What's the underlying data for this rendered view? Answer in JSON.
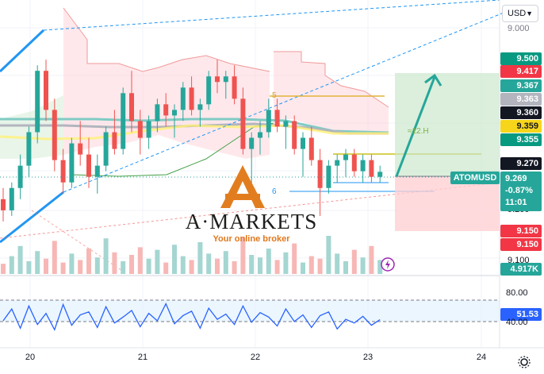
{
  "header": {
    "currency": "USD"
  },
  "price_axis": {
    "top_label": "9.000",
    "mid_label": "9.200",
    "lower_label": "9.100",
    "tags": [
      {
        "value": "9.500",
        "color": "#089981"
      },
      {
        "value": "9.417",
        "color": "#f23645"
      },
      {
        "value": "9.367",
        "color": "#26a69a"
      },
      {
        "value": "9.363",
        "color": "#b2b5be"
      },
      {
        "value": "9.360",
        "color": "#131722"
      },
      {
        "value": "9.359",
        "color": "#f7d51b"
      },
      {
        "value": "9.355",
        "color": "#089981"
      },
      {
        "value": "9.270",
        "color": "#131722"
      },
      {
        "value": "9.150",
        "color": "#f23645"
      },
      {
        "value": "9.150",
        "color": "#f23645"
      }
    ],
    "last": {
      "symbol": "ATOMUSD",
      "price": "9.269",
      "change": "-0.87%",
      "countdown": "11:01"
    },
    "volume_tag": "4.917K"
  },
  "rsi_axis": {
    "upper": "80.00",
    "value": "51.53",
    "lower": "40.00"
  },
  "time_axis": {
    "labels": [
      "20",
      "21",
      "22",
      "23",
      "24"
    ]
  },
  "annotations": {
    "fib_5": "5",
    "fib_6": "6",
    "range_label": "≈12.H"
  },
  "logo": {
    "brand": "A·MARKETS",
    "tagline": "Your online broker"
  },
  "chart_data": {
    "type": "candlestick",
    "symbol": "ATOMUSD",
    "x_labels": [
      "20",
      "21",
      "22",
      "23",
      "24"
    ],
    "ohlc": [
      [
        9.22,
        9.24,
        9.18,
        9.2
      ],
      [
        9.2,
        9.25,
        9.19,
        9.24
      ],
      [
        9.24,
        9.3,
        9.22,
        9.28
      ],
      [
        9.28,
        9.35,
        9.26,
        9.34
      ],
      [
        9.34,
        9.46,
        9.32,
        9.45
      ],
      [
        9.45,
        9.47,
        9.36,
        9.38
      ],
      [
        9.38,
        9.4,
        9.27,
        9.29
      ],
      [
        9.29,
        9.31,
        9.23,
        9.25
      ],
      [
        9.25,
        9.33,
        9.24,
        9.32
      ],
      [
        9.32,
        9.36,
        9.28,
        9.3
      ],
      [
        9.3,
        9.33,
        9.24,
        9.26
      ],
      [
        9.26,
        9.3,
        9.23,
        9.28
      ],
      [
        9.28,
        9.35,
        9.27,
        9.34
      ],
      [
        9.34,
        9.38,
        9.3,
        9.31
      ],
      [
        9.31,
        9.42,
        9.3,
        9.41
      ],
      [
        9.41,
        9.45,
        9.34,
        9.36
      ],
      [
        9.36,
        9.38,
        9.3,
        9.33
      ],
      [
        9.33,
        9.37,
        9.31,
        9.36
      ],
      [
        9.36,
        9.4,
        9.34,
        9.39
      ],
      [
        9.39,
        9.41,
        9.35,
        9.37
      ],
      [
        9.37,
        9.39,
        9.33,
        9.38
      ],
      [
        9.38,
        9.43,
        9.36,
        9.42
      ],
      [
        9.42,
        9.44,
        9.37,
        9.38
      ],
      [
        9.38,
        9.4,
        9.35,
        9.39
      ],
      [
        9.39,
        9.45,
        9.38,
        9.44
      ],
      [
        9.44,
        9.47,
        9.41,
        9.43
      ],
      [
        9.43,
        9.45,
        9.4,
        9.44
      ],
      [
        9.44,
        9.46,
        9.39,
        9.4
      ],
      [
        9.4,
        9.42,
        9.3,
        9.31
      ],
      [
        9.31,
        9.34,
        9.22,
        9.33
      ],
      [
        9.33,
        9.36,
        9.3,
        9.34
      ],
      [
        9.34,
        9.4,
        9.33,
        9.38
      ],
      [
        9.38,
        9.4,
        9.34,
        9.35
      ],
      [
        9.35,
        9.37,
        9.31,
        9.36
      ],
      [
        9.36,
        9.37,
        9.3,
        9.31
      ],
      [
        9.31,
        9.34,
        9.26,
        9.33
      ],
      [
        9.33,
        9.35,
        9.28,
        9.29
      ],
      [
        9.29,
        9.31,
        9.19,
        9.24
      ],
      [
        9.24,
        9.29,
        9.23,
        9.28
      ],
      [
        9.28,
        9.3,
        9.25,
        9.29
      ],
      [
        9.29,
        9.31,
        9.26,
        9.3
      ],
      [
        9.3,
        9.31,
        9.26,
        9.27
      ],
      [
        9.27,
        9.3,
        9.25,
        9.29
      ],
      [
        9.29,
        9.3,
        9.25,
        9.26
      ],
      [
        9.26,
        9.28,
        9.25,
        9.269
      ]
    ],
    "rsi": {
      "value": 51.53,
      "levels": [
        80,
        40
      ],
      "values": [
        50,
        66,
        40,
        70,
        45,
        60,
        38,
        72,
        44,
        58,
        62,
        41,
        69,
        47,
        55,
        64,
        42,
        60,
        50,
        73,
        46,
        57,
        63,
        40,
        67,
        52,
        59,
        45,
        70,
        48,
        61,
        55,
        43,
        66,
        49,
        58,
        41,
        57,
        62,
        39,
        52,
        47,
        56,
        44,
        51.53
      ]
    },
    "volume": [
      8,
      14,
      22,
      10,
      18,
      12,
      26,
      9,
      16,
      11,
      20,
      13,
      28,
      17,
      10,
      15,
      21,
      12,
      19,
      9,
      23,
      14,
      11,
      25,
      16,
      12,
      18,
      10,
      29,
      15,
      13,
      20,
      11,
      17,
      24,
      9,
      14,
      12,
      30,
      16,
      10,
      19,
      13,
      22,
      11
    ],
    "levels": {
      "target": 9.5,
      "stop": 9.15,
      "entry": 9.27,
      "last": 9.269
    }
  }
}
